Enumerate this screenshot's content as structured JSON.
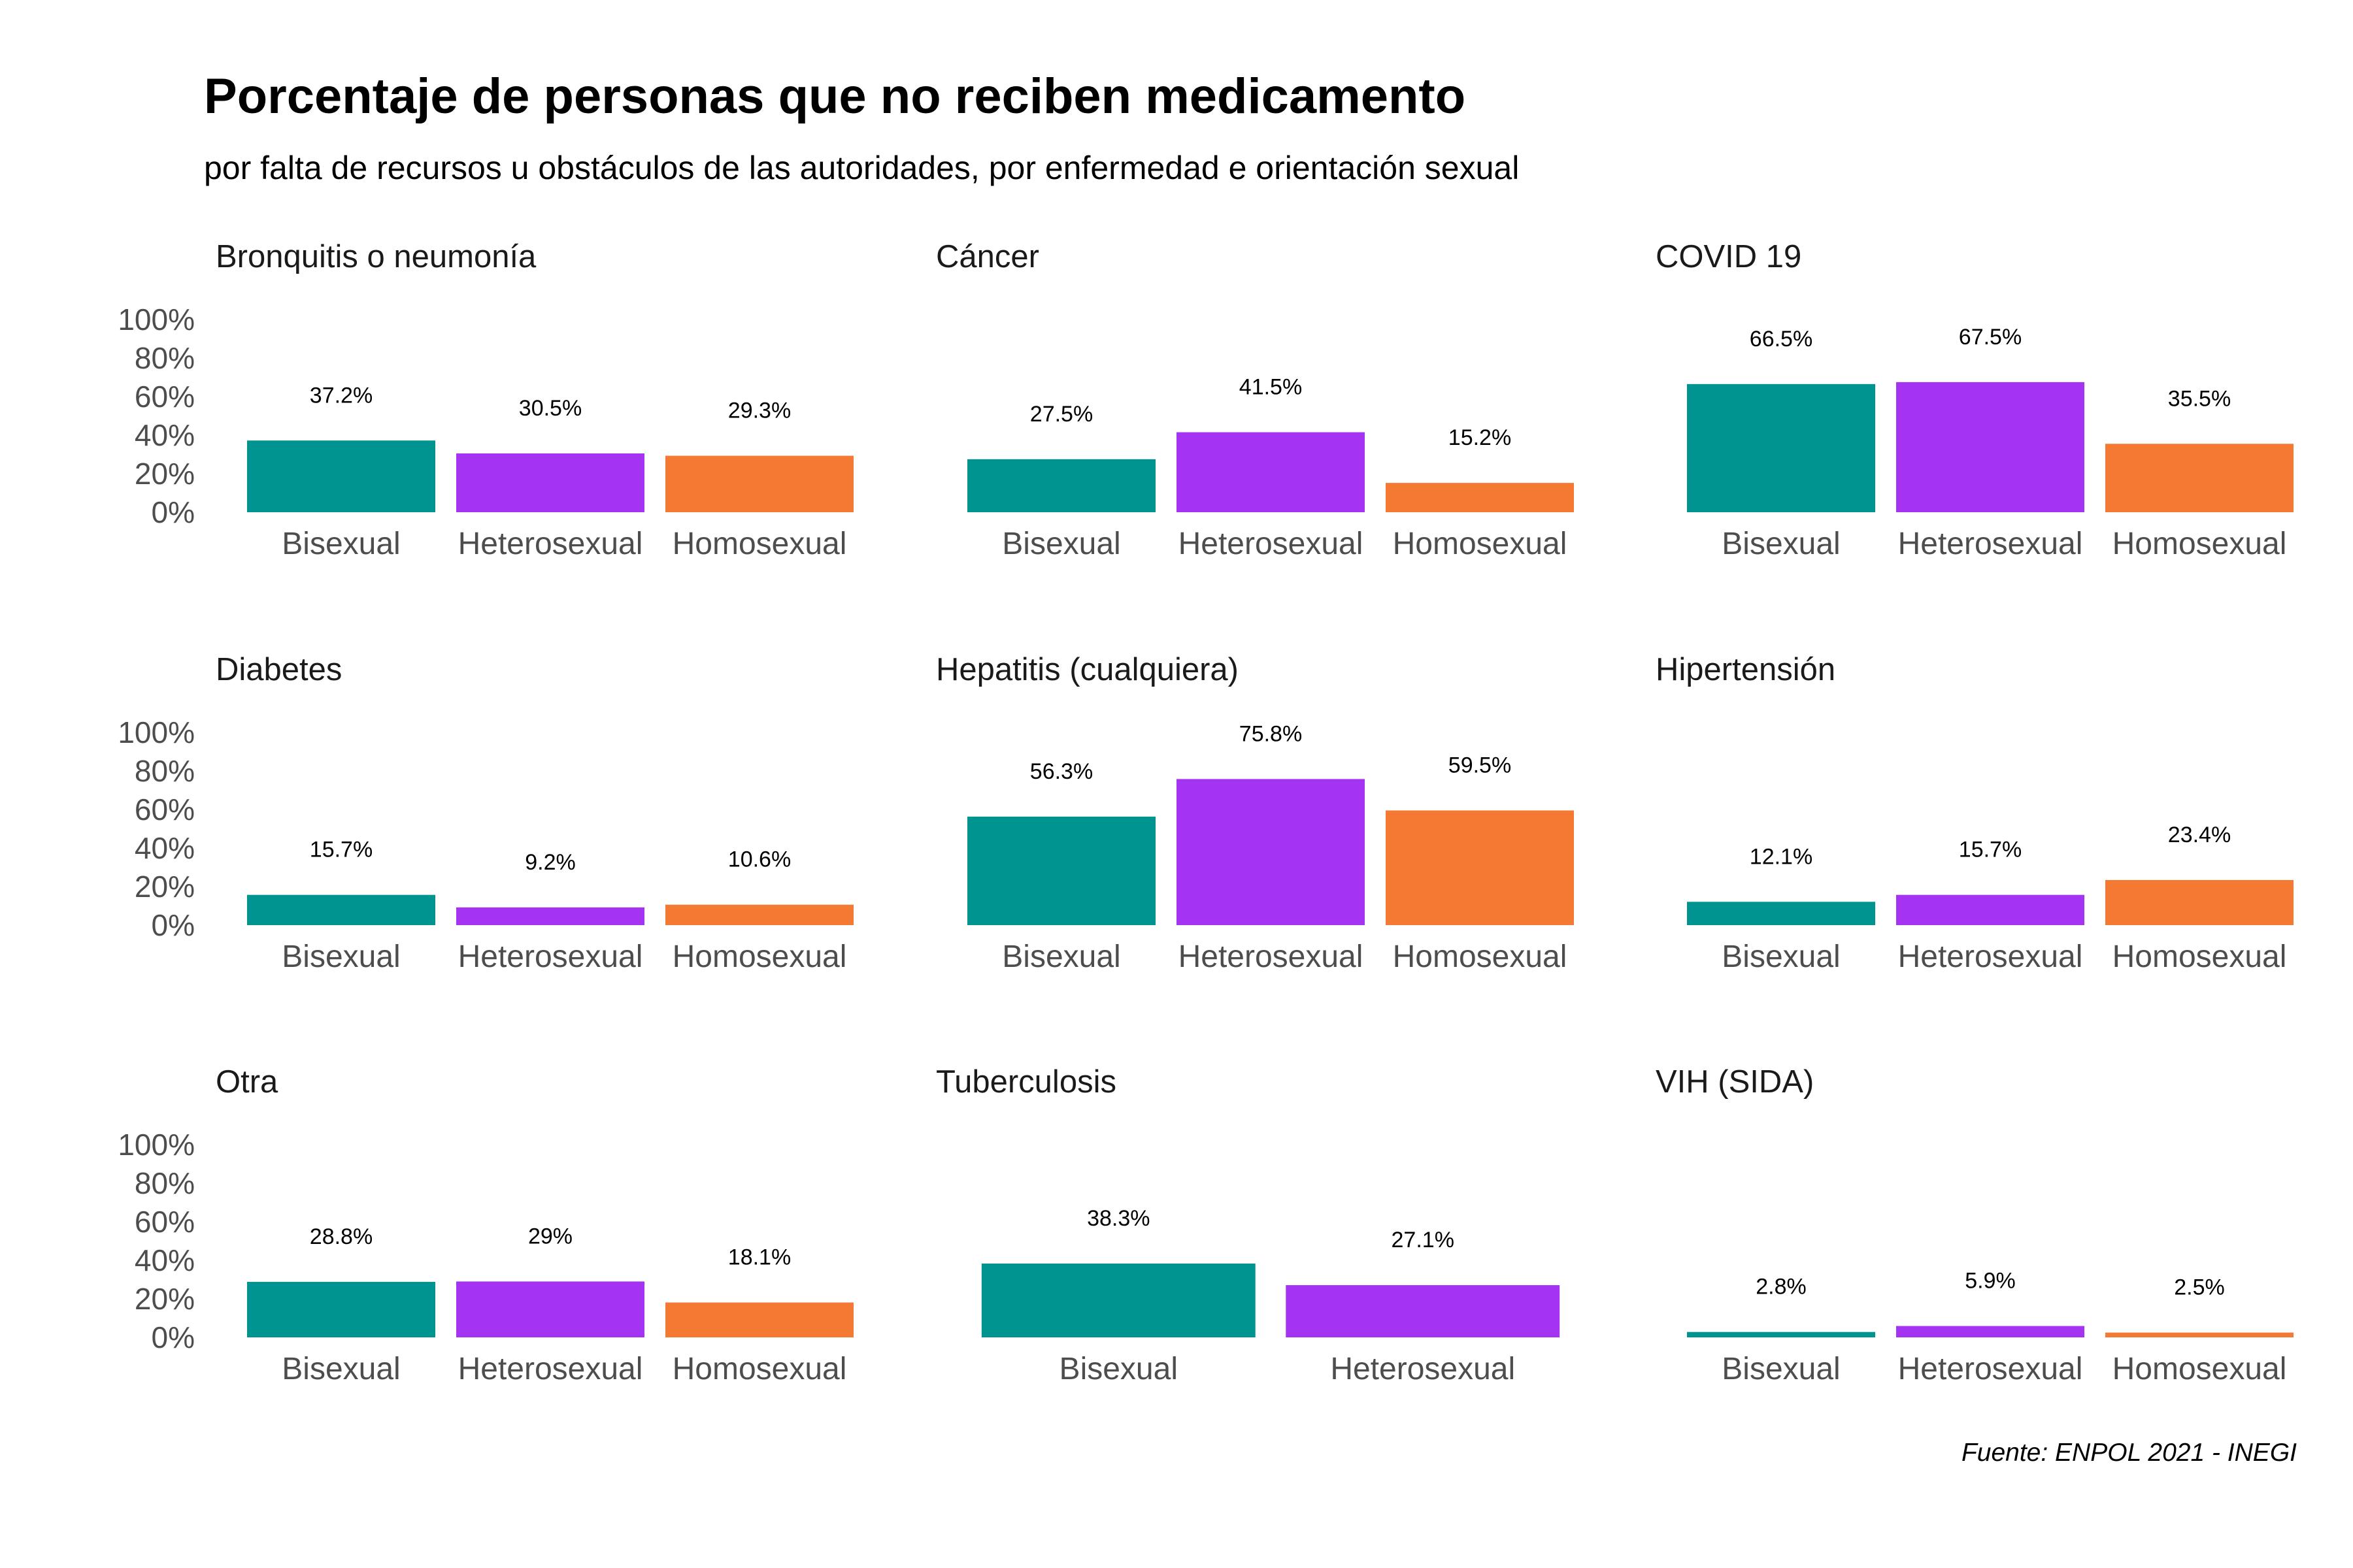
{
  "title": "Porcentaje de personas que no reciben medicamento",
  "subtitle": "por falta de recursos u obstáculos de las autoridades, por enfermedad e orientación sexual",
  "source": "Fuente: ENPOL 2021 - INEGI",
  "colors": {
    "Bisexual": "#009490",
    "Heterosexual": "#A434F2",
    "Homosexual": "#F47932"
  },
  "chart_data": {
    "type": "bar",
    "ylim": [
      0,
      100
    ],
    "yticks": [
      "0%",
      "20%",
      "40%",
      "60%",
      "80%",
      "100%"
    ],
    "grid": false,
    "panels": [
      {
        "title": "Bronquitis o neumonía",
        "categories": [
          "Bisexual",
          "Heterosexual",
          "Homosexual"
        ],
        "values": [
          37.2,
          30.5,
          29.3
        ],
        "labels": [
          "37.2%",
          "30.5%",
          "29.3%"
        ]
      },
      {
        "title": "Cáncer",
        "categories": [
          "Bisexual",
          "Heterosexual",
          "Homosexual"
        ],
        "values": [
          27.5,
          41.5,
          15.2
        ],
        "labels": [
          "27.5%",
          "41.5%",
          "15.2%"
        ]
      },
      {
        "title": "COVID 19",
        "categories": [
          "Bisexual",
          "Heterosexual",
          "Homosexual"
        ],
        "values": [
          66.5,
          67.5,
          35.5
        ],
        "labels": [
          "66.5%",
          "67.5%",
          "35.5%"
        ]
      },
      {
        "title": "Diabetes",
        "categories": [
          "Bisexual",
          "Heterosexual",
          "Homosexual"
        ],
        "values": [
          15.7,
          9.2,
          10.6
        ],
        "labels": [
          "15.7%",
          "9.2%",
          "10.6%"
        ]
      },
      {
        "title": "Hepatitis (cualquiera)",
        "categories": [
          "Bisexual",
          "Heterosexual",
          "Homosexual"
        ],
        "values": [
          56.3,
          75.8,
          59.5
        ],
        "labels": [
          "56.3%",
          "75.8%",
          "59.5%"
        ]
      },
      {
        "title": "Hipertensión",
        "categories": [
          "Bisexual",
          "Heterosexual",
          "Homosexual"
        ],
        "values": [
          12.1,
          15.7,
          23.4
        ],
        "labels": [
          "12.1%",
          "15.7%",
          "23.4%"
        ]
      },
      {
        "title": "Otra",
        "categories": [
          "Bisexual",
          "Heterosexual",
          "Homosexual"
        ],
        "values": [
          28.8,
          29,
          18.1
        ],
        "labels": [
          "28.8%",
          "29%",
          "18.1%"
        ]
      },
      {
        "title": "Tuberculosis",
        "categories": [
          "Bisexual",
          "Heterosexual"
        ],
        "values": [
          38.3,
          27.1
        ],
        "labels": [
          "38.3%",
          "27.1%"
        ]
      },
      {
        "title": "VIH (SIDA)",
        "categories": [
          "Bisexual",
          "Heterosexual",
          "Homosexual"
        ],
        "values": [
          2.8,
          5.9,
          2.5
        ],
        "labels": [
          "2.8%",
          "5.9%",
          "2.5%"
        ]
      }
    ]
  }
}
